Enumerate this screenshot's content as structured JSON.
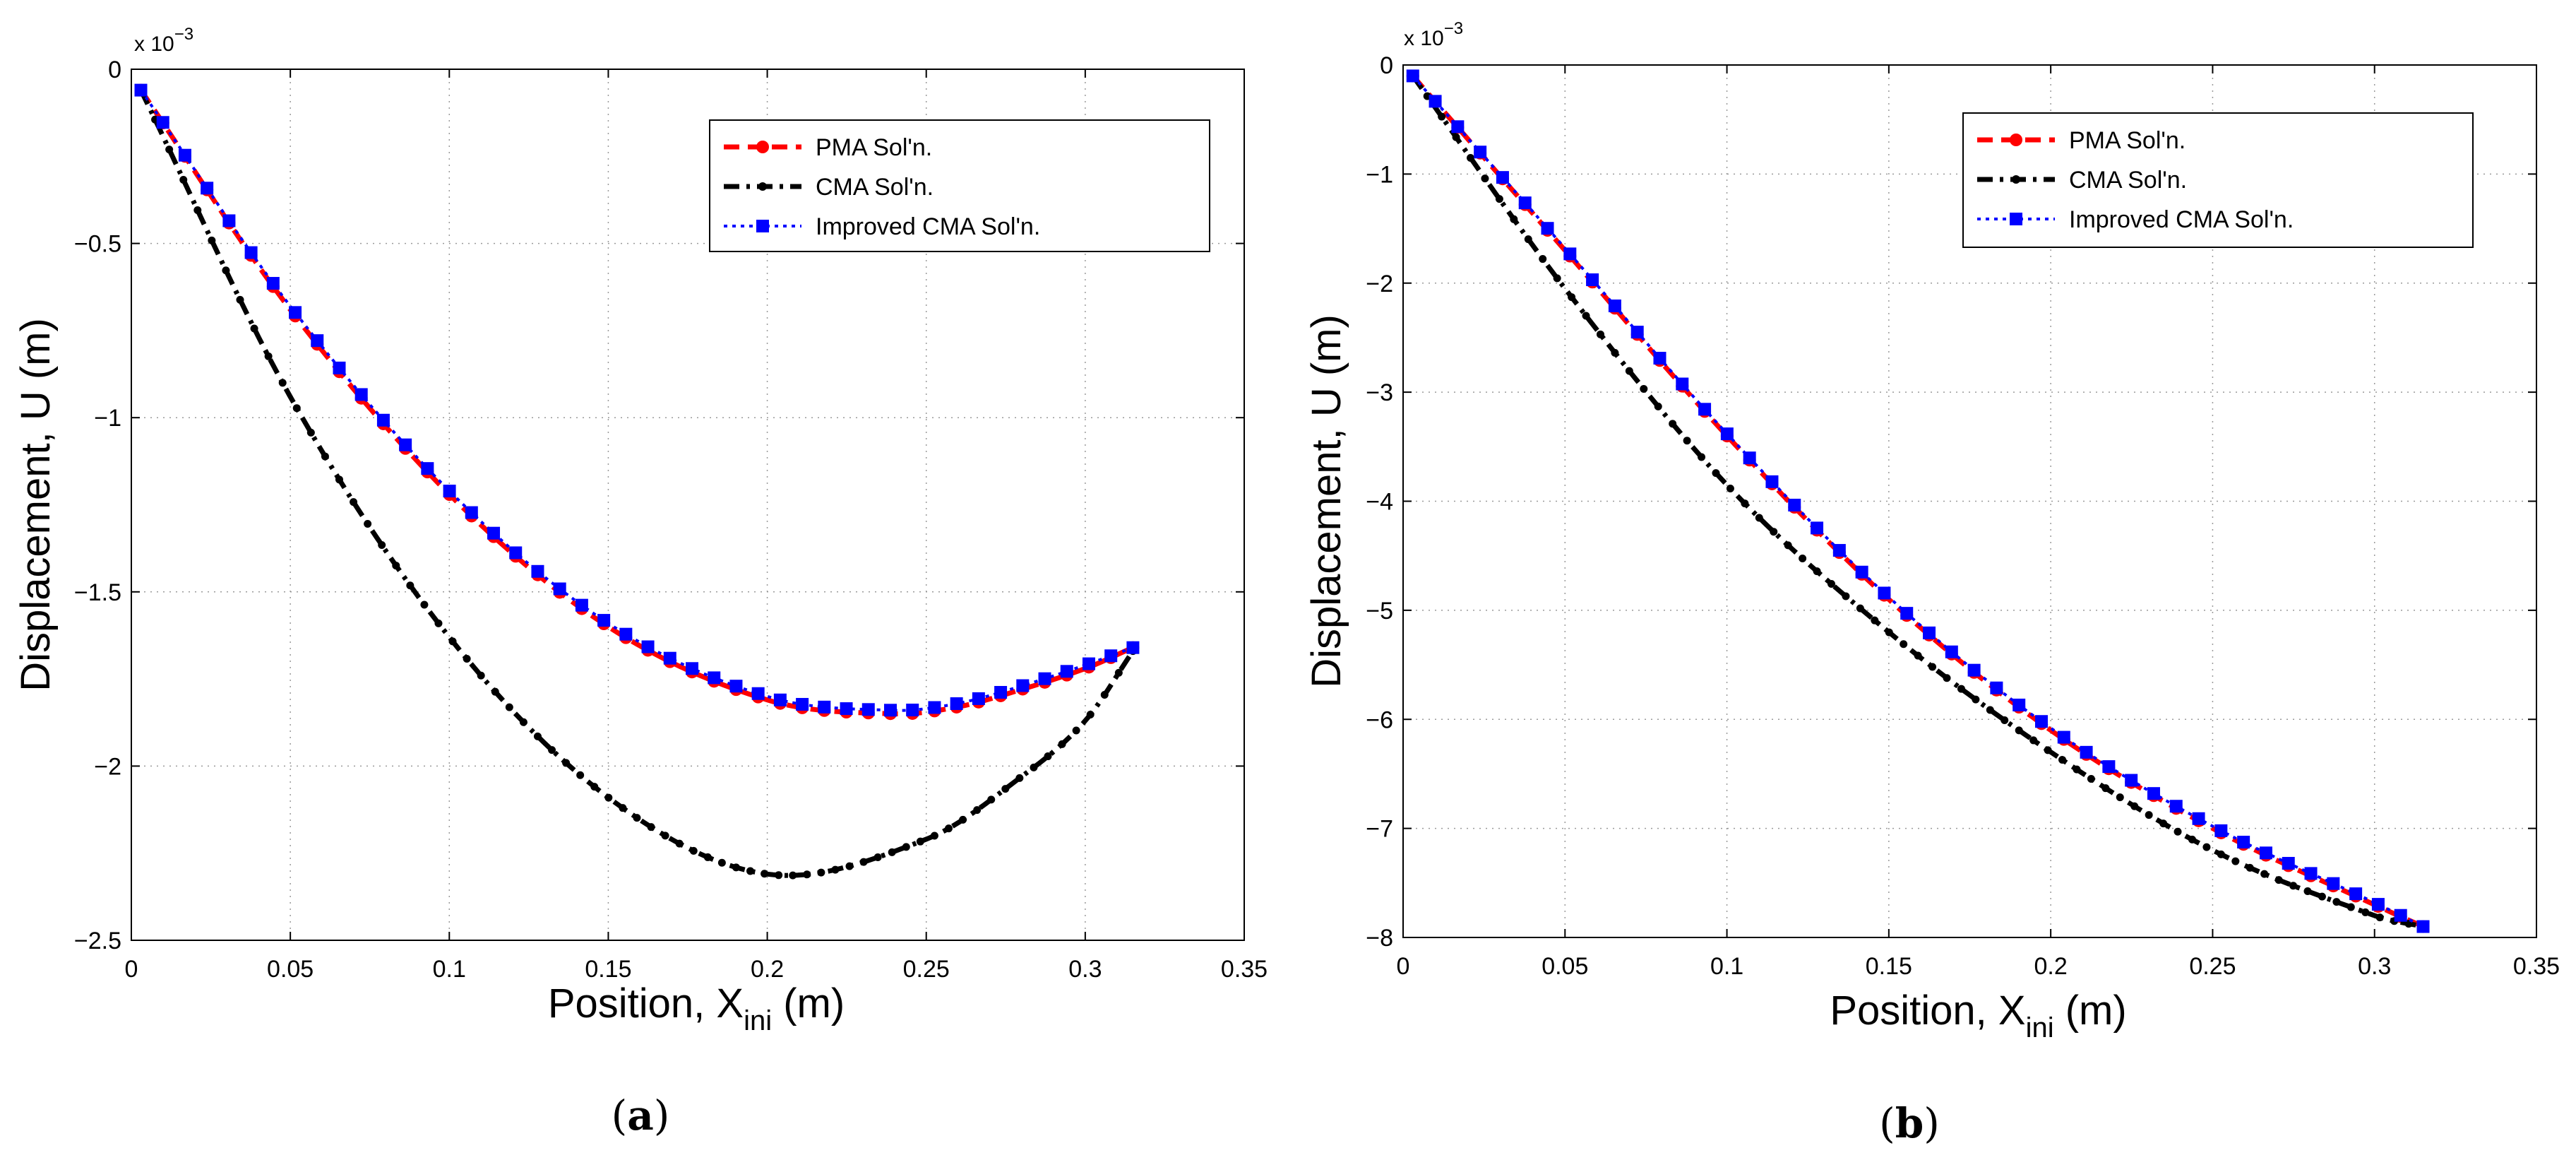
{
  "chart_data": [
    {
      "type": "line",
      "panel_label": "a",
      "scale_label": "x 10",
      "scale_exponent": "−3",
      "xlabel": "Position, X",
      "xlabel_sub": "ini",
      "xlabel_unit": " (m)",
      "ylabel": "Displacement, U (m)",
      "xlim": [
        0,
        0.35
      ],
      "ylim": [
        -2.5,
        0
      ],
      "xticks": [
        0,
        0.05,
        0.1,
        0.15,
        0.2,
        0.25,
        0.3,
        0.35
      ],
      "xtick_labels": [
        "0",
        "0.05",
        "0.1",
        "0.15",
        "0.2",
        "0.25",
        "0.3",
        "0.35"
      ],
      "yticks": [
        0,
        -0.5,
        -1,
        -1.5,
        -2,
        -2.5
      ],
      "ytick_labels": [
        "0",
        "−0.5",
        "−1",
        "−1.5",
        "−2",
        "−2.5"
      ],
      "grid": true,
      "legend_position": "top-right",
      "series": [
        {
          "name": "PMA Sol'n.",
          "color": "#ff0000",
          "style": "dashed",
          "marker": "circle",
          "x": [
            0.003,
            0.05,
            0.1,
            0.15,
            0.2,
            0.24,
            0.26,
            0.28,
            0.3,
            0.315
          ],
          "y": [
            -0.06,
            -0.69,
            -1.22,
            -1.6,
            -1.81,
            -1.85,
            -1.83,
            -1.78,
            -1.72,
            -1.66
          ]
        },
        {
          "name": "CMA Sol'n.",
          "color": "#000000",
          "style": "dashdot",
          "marker": "point",
          "x": [
            0.003,
            0.05,
            0.1,
            0.15,
            0.2,
            0.25,
            0.28,
            0.3,
            0.315
          ],
          "y": [
            -0.06,
            -0.94,
            -1.63,
            -2.09,
            -2.31,
            -2.21,
            -2.03,
            -1.87,
            -1.67
          ]
        },
        {
          "name": "Improved CMA Sol'n.",
          "color": "#0000ff",
          "style": "dotted",
          "marker": "square",
          "x": [
            0.003,
            0.05,
            0.1,
            0.15,
            0.2,
            0.24,
            0.26,
            0.28,
            0.3,
            0.315
          ],
          "y": [
            -0.06,
            -0.68,
            -1.21,
            -1.59,
            -1.8,
            -1.84,
            -1.82,
            -1.77,
            -1.71,
            -1.66
          ]
        }
      ]
    },
    {
      "type": "line",
      "panel_label": "b",
      "scale_label": "x 10",
      "scale_exponent": "−3",
      "xlabel": "Position, X",
      "xlabel_sub": "ini",
      "xlabel_unit": " (m)",
      "ylabel": "Displacement, U (m)",
      "xlim": [
        0,
        0.35
      ],
      "ylim": [
        -8,
        0
      ],
      "xticks": [
        0,
        0.05,
        0.1,
        0.15,
        0.2,
        0.25,
        0.3,
        0.35
      ],
      "xtick_labels": [
        "0",
        "0.05",
        "0.1",
        "0.15",
        "0.2",
        "0.25",
        "0.3",
        "0.35"
      ],
      "yticks": [
        0,
        -1,
        -2,
        -3,
        -4,
        -5,
        -6,
        -7,
        -8
      ],
      "ytick_labels": [
        "0",
        "−1",
        "−2",
        "−3",
        "−4",
        "−5",
        "−6",
        "−7",
        "−8"
      ],
      "grid": true,
      "legend_position": "top-right",
      "series": [
        {
          "name": "PMA Sol'n.",
          "color": "#ff0000",
          "style": "dashed",
          "marker": "circle",
          "x": [
            0.003,
            0.05,
            0.1,
            0.15,
            0.2,
            0.25,
            0.3,
            0.315
          ],
          "y": [
            -0.1,
            -1.7,
            -3.4,
            -4.9,
            -6.1,
            -7.0,
            -7.7,
            -7.9
          ]
        },
        {
          "name": "CMA Sol'n.",
          "color": "#000000",
          "style": "dashdot",
          "marker": "point",
          "x": [
            0.003,
            0.05,
            0.1,
            0.15,
            0.2,
            0.25,
            0.3,
            0.315
          ],
          "y": [
            -0.1,
            -2.05,
            -3.85,
            -5.2,
            -6.3,
            -7.2,
            -7.8,
            -7.9
          ]
        },
        {
          "name": "Improved CMA Sol'n.",
          "color": "#0000ff",
          "style": "dotted",
          "marker": "square",
          "x": [
            0.003,
            0.05,
            0.1,
            0.15,
            0.2,
            0.25,
            0.3,
            0.315
          ],
          "y": [
            -0.1,
            -1.68,
            -3.38,
            -4.88,
            -6.08,
            -6.98,
            -7.68,
            -7.9
          ]
        }
      ]
    }
  ]
}
